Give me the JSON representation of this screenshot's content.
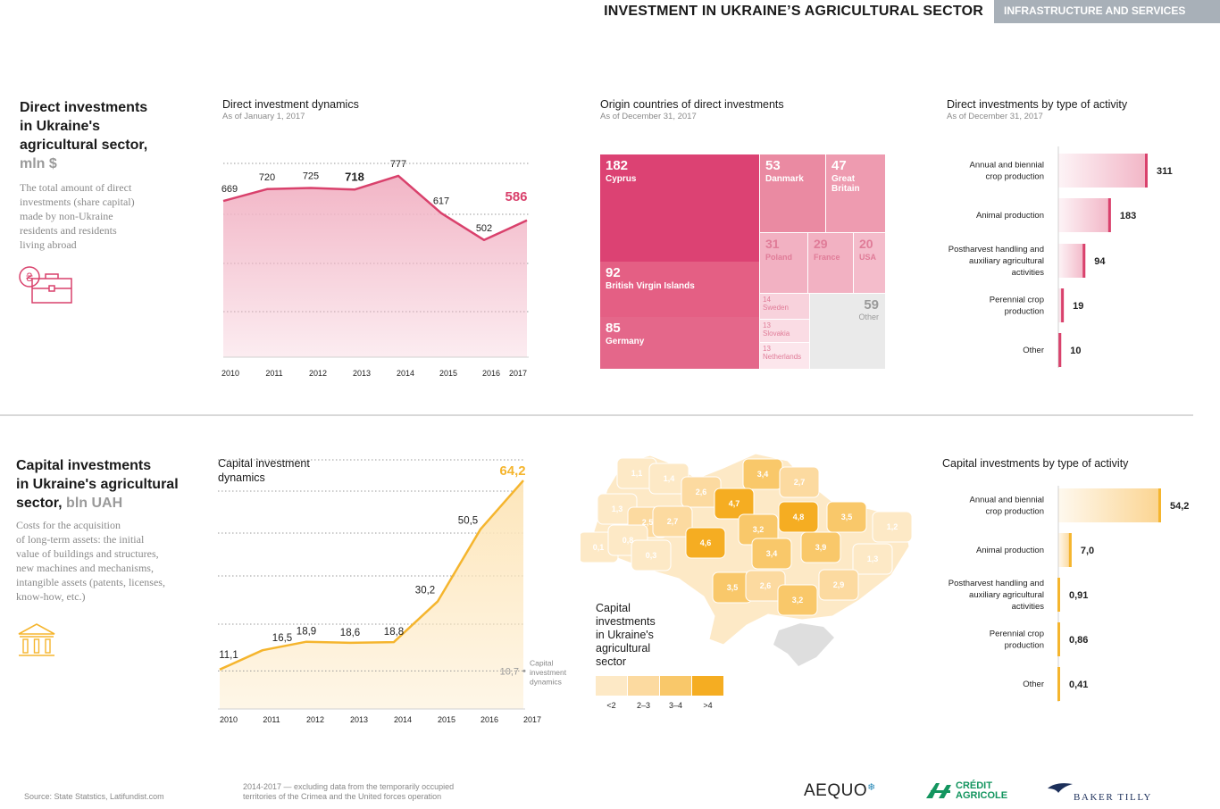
{
  "header": {
    "title": "INVESTMENT IN UKRAINE’S AGRICULTURAL SECTOR",
    "tag": "INFRASTRUCTURE AND SERVICES"
  },
  "direct": {
    "title_lines": [
      "Direct investments",
      "in Ukraine's",
      "agricultural sector,"
    ],
    "unit": "mln $",
    "desc_lines": [
      "The total amount of direct",
      "investments (share capital)",
      "made by non-Ukraine",
      "residents and residents",
      "living abroad"
    ]
  },
  "capital": {
    "title_lines": [
      "Capital investments",
      "in Ukraine's agricultural"
    ],
    "title_last": "sector,",
    "unit": "bln UAH",
    "desc_lines": [
      "Costs for the acquisition",
      "of long-term assets: the initial",
      "value of buildings and structures,",
      "new machines and mechanisms,",
      "intangible assets (patents, licenses,",
      "know-how, etc.)"
    ]
  },
  "footer": {
    "source": "Source: State Statstics, Latifundist.com",
    "note_lines": [
      "2014-2017 — excluding data from the temporarily occupied",
      "territories of the Crimea and the United forces operation"
    ],
    "logos": {
      "aequo": "AEQUO",
      "ca_1": "CRÉDIT",
      "ca_2": "AGRICOLE",
      "baker": "BAKER TILLY"
    }
  },
  "colors": {
    "pink": "#d9416c",
    "pink_fill": "#f2b5c6",
    "orange": "#f5b52e",
    "orange_fill": "#fde6bb"
  },
  "map": {
    "title_lines": [
      "Capital",
      "investments",
      "in Ukraine's",
      "agricultural",
      "sector"
    ]
  },
  "chart_data": [
    {
      "id": "direct_dynamics",
      "type": "area",
      "title": "Direct investment dynamics",
      "subtitle": "As of January 1, 2017",
      "x": [
        "2010",
        "2011",
        "2012",
        "2013",
        "2014",
        "2015",
        "2016",
        "2017"
      ],
      "values": [
        669,
        720,
        725,
        718,
        777,
        617,
        502,
        586
      ],
      "labels": [
        "669",
        "720",
        "725",
        "718",
        "777",
        "617",
        "502",
        "586"
      ],
      "ylim": [
        0,
        830
      ]
    },
    {
      "id": "origin_countries",
      "type": "treemap",
      "title": "Origin countries of direct investments",
      "subtitle": "As of December 31, 2017",
      "items": [
        {
          "name": "Cyprus",
          "value": "182",
          "color": "#dc4273"
        },
        {
          "name": "British Virgin Islands",
          "value": "92",
          "color": "#e45f84"
        },
        {
          "name": "Germany",
          "value": "85",
          "color": "#e4678a"
        },
        {
          "name": "Danmark",
          "value": "53",
          "color": "#ea8aa2"
        },
        {
          "name": "Great Britain",
          "value": "47",
          "color": "#ee9bb0"
        },
        {
          "name": "Poland",
          "value": "31",
          "color": "#f2b1c2"
        },
        {
          "name": "France",
          "value": "29",
          "color": "#f2b1c2"
        },
        {
          "name": "USA",
          "value": "20",
          "color": "#f4bccb"
        },
        {
          "name": "Sweden",
          "value": "14",
          "color": "#f8d2dc"
        },
        {
          "name": "Slovakia",
          "value": "13",
          "color": "#fadce4"
        },
        {
          "name": "Netherlands",
          "value": "13",
          "color": "#fce6ec"
        },
        {
          "name": "Other",
          "value": "59",
          "color": "#eaeaea"
        }
      ]
    },
    {
      "id": "direct_by_activity",
      "type": "bar",
      "title": "Direct investments by type of activity",
      "subtitle": "As of December 31, 2017",
      "categories": [
        "Annual and biennial crop production",
        "Animal production",
        "Postharvest handling and auxiliary agricultural activities",
        "Perennial crop production",
        "Other"
      ],
      "values": [
        311,
        183,
        94,
        19,
        10
      ],
      "labels": [
        "311",
        "183",
        "94",
        "19",
        "10"
      ]
    },
    {
      "id": "capital_dynamics",
      "type": "area",
      "title": "Capital investment dynamics",
      "x": [
        "2010",
        "2011",
        "2012",
        "2013",
        "2014",
        "2015",
        "2016",
        "2017"
      ],
      "values": [
        11.1,
        16.5,
        18.9,
        18.6,
        18.8,
        30.2,
        50.5,
        64.2
      ],
      "labels": [
        "11,1",
        "16,5",
        "18,9",
        "18,6",
        "18,8",
        "30,2",
        "50,5",
        "64,2"
      ],
      "annotation": {
        "value": 10.7,
        "label": "10,7",
        "text_lines": [
          "Capital",
          "investment",
          "dynamics"
        ]
      },
      "ylim": [
        0,
        70
      ]
    },
    {
      "id": "regional_map",
      "type": "choropleth",
      "region_values": [
        "1,1",
        "1,4",
        "2,6",
        "3,4",
        "2,7",
        "1,3",
        "2,5",
        "2,7",
        "4,7",
        "4,8",
        "3,5",
        "1,2",
        "0,1",
        "0,8",
        "4,6",
        "3,2",
        "3,9",
        "0,3",
        "3,4",
        "1,3",
        "3,5",
        "2,6",
        "2,9",
        "3,2"
      ],
      "legend": [
        {
          "label": "<2",
          "color": "#fde9c6"
        },
        {
          "label": "2–3",
          "color": "#fcdaa0"
        },
        {
          "label": "3–4",
          "color": "#f9c86a"
        },
        {
          "label": ">4",
          "color": "#f5ad22"
        }
      ]
    },
    {
      "id": "capital_by_activity",
      "type": "bar",
      "title": "Capital investments by type of activity",
      "categories": [
        "Annual and biennial crop production",
        "Animal production",
        "Postharvest handling and auxiliary agricultural activities",
        "Perennial crop production",
        "Other"
      ],
      "values": [
        54.2,
        7.0,
        0.91,
        0.86,
        0.41
      ],
      "labels": [
        "54,2",
        "7,0",
        "0,91",
        "0,86",
        "0,41"
      ]
    }
  ]
}
